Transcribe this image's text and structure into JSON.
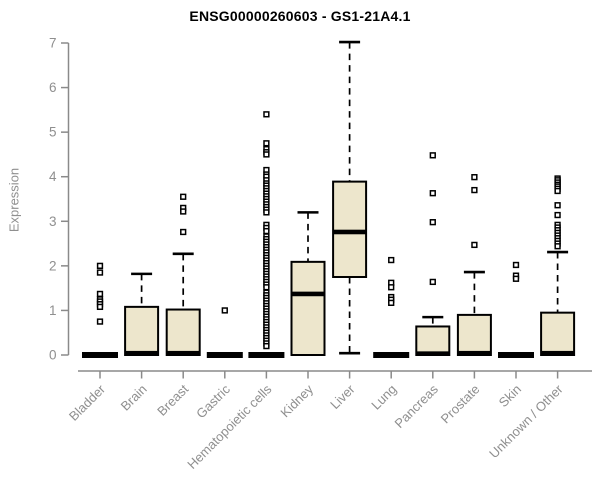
{
  "title": "ENSG00000260603 - GS1-21A4.1",
  "colors": {
    "background": "#ffffff",
    "title": "#000000",
    "axis": "#8a8a8a",
    "tick_label": "#8f8f8f",
    "box_fill": "#ede6cc",
    "box_stroke": "#000000",
    "median": "#000000",
    "whisker": "#000000",
    "outlier_fill": "#ffffff",
    "outlier_stroke": "#000000"
  },
  "chart_data": {
    "type": "box",
    "title": "ENSG00000260603 - GS1-21A4.1",
    "xlabel": "",
    "ylabel": "Expression",
    "ylim": [
      0,
      7
    ],
    "yticks": [
      0,
      1,
      2,
      3,
      4,
      5,
      6,
      7
    ],
    "grid": false,
    "legend": "none",
    "categories": [
      "Bladder",
      "Brain",
      "Breast",
      "Gastric",
      "Hematopoietic cells",
      "Kidney",
      "Liver",
      "Lung",
      "Pancreas",
      "Prostate",
      "Skin",
      "Unknown / Other"
    ],
    "boxes": [
      {
        "name": "Bladder",
        "low": 0,
        "q1": 0,
        "median": 0,
        "q3": 0,
        "high": 0,
        "outliers": [
          2.0,
          1.85,
          1.37,
          1.25,
          1.2,
          1.14,
          1.08,
          0.75
        ]
      },
      {
        "name": "Brain",
        "low": 0,
        "q1": 0,
        "median": 0.04,
        "q3": 1.08,
        "high": 1.82,
        "outliers": []
      },
      {
        "name": "Breast",
        "low": 0,
        "q1": 0,
        "median": 0.04,
        "q3": 1.02,
        "high": 2.27,
        "outliers": [
          3.55,
          3.3,
          3.22,
          2.76
        ]
      },
      {
        "name": "Gastric",
        "low": 0,
        "q1": 0,
        "median": 0,
        "q3": 0,
        "high": 0,
        "outliers": [
          1.0
        ]
      },
      {
        "name": "Hematopoietic cells",
        "low": 0,
        "q1": 0,
        "median": 0,
        "q3": 0,
        "high": 0,
        "outliers": [
          5.4,
          4.75,
          4.62,
          4.55,
          4.5,
          4.15,
          4.05,
          4.0,
          3.92,
          3.85,
          3.8,
          3.74,
          3.68,
          3.62,
          3.56,
          3.5,
          3.44,
          3.38,
          3.32,
          3.26,
          3.2,
          2.92,
          2.85,
          2.78,
          2.66,
          2.6,
          2.54,
          2.48,
          2.42,
          2.36,
          2.3,
          2.24,
          2.18,
          2.12,
          2.06,
          2.0,
          1.94,
          1.88,
          1.82,
          1.76,
          1.7,
          1.64,
          1.58,
          1.52,
          1.4,
          1.34,
          1.28,
          1.22,
          1.16,
          1.1,
          1.04,
          0.98,
          0.92,
          0.86,
          0.8,
          0.74,
          0.68,
          0.62,
          0.56,
          0.5,
          0.44,
          0.38,
          0.32,
          0.26,
          0.2
        ]
      },
      {
        "name": "Kidney",
        "low": 0,
        "q1": 0,
        "median": 1.37,
        "q3": 2.09,
        "high": 3.2,
        "outliers": []
      },
      {
        "name": "Liver",
        "low": 0.04,
        "q1": 1.75,
        "median": 2.76,
        "q3": 3.89,
        "high": 7.02,
        "outliers": []
      },
      {
        "name": "Lung",
        "low": 0,
        "q1": 0,
        "median": 0,
        "q3": 0,
        "high": 0,
        "outliers": [
          2.13,
          1.62,
          1.52,
          1.3,
          1.24,
          1.17
        ]
      },
      {
        "name": "Pancreas",
        "low": 0,
        "q1": 0,
        "median": 0.03,
        "q3": 0.64,
        "high": 0.85,
        "outliers": [
          4.48,
          3.63,
          2.98,
          1.64
        ]
      },
      {
        "name": "Prostate",
        "low": 0,
        "q1": 0,
        "median": 0.04,
        "q3": 0.9,
        "high": 1.86,
        "outliers": [
          3.99,
          3.7,
          2.47
        ]
      },
      {
        "name": "Skin",
        "low": 0,
        "q1": 0,
        "median": 0,
        "q3": 0,
        "high": 0,
        "outliers": [
          2.02,
          1.78,
          1.71
        ]
      },
      {
        "name": "Unknown / Other",
        "low": 0,
        "q1": 0,
        "median": 0.04,
        "q3": 0.95,
        "high": 2.31,
        "outliers": [
          3.96,
          3.92,
          3.87,
          3.82,
          3.78,
          3.73,
          3.68,
          3.36,
          3.14,
          2.92,
          2.86,
          2.8,
          2.74,
          2.68,
          2.62,
          2.56,
          2.5,
          2.44
        ]
      }
    ]
  }
}
